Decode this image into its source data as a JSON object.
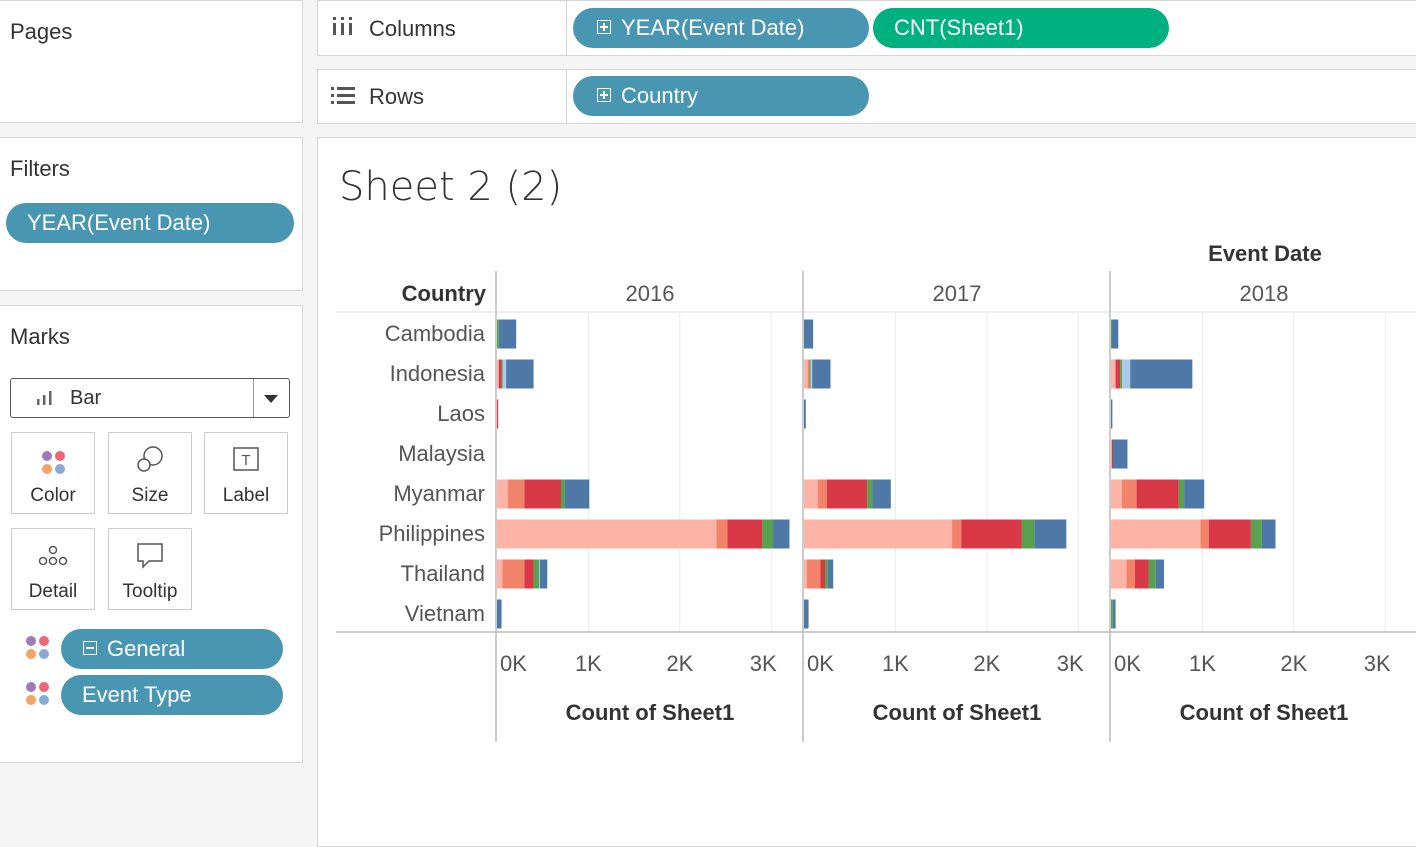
{
  "pages": {
    "title": "Pages"
  },
  "filters": {
    "title": "Filters",
    "pill": "YEAR(Event Date)"
  },
  "marks": {
    "title": "Marks",
    "mark_type": "Bar",
    "cards": {
      "color": "Color",
      "size": "Size",
      "label": "Label",
      "detail": "Detail",
      "tooltip": "Tooltip"
    },
    "fields": {
      "general": "General",
      "event_type": "Event Type"
    }
  },
  "columns_shelf": {
    "label": "Columns",
    "pills": [
      "YEAR(Event Date)",
      "CNT(Sheet1)"
    ]
  },
  "rows_shelf": {
    "label": "Rows",
    "pills": [
      "Country"
    ]
  },
  "sheet": {
    "title": "Sheet 2 (2)"
  },
  "colors": {
    "seg": [
      "#fdb3a5",
      "#f2836b",
      "#d93846",
      "#59a14f",
      "#a7cbe8",
      "#4e79a7"
    ],
    "pill_blue": "#4996b2",
    "pill_green": "#00b180"
  },
  "chart_data": {
    "type": "bar",
    "orientation": "horizontal",
    "stacked": true,
    "column_header": "Event Date",
    "row_header": "Country",
    "categories": [
      "Cambodia",
      "Indonesia",
      "Laos",
      "Malaysia",
      "Myanmar",
      "Philippines",
      "Thailand",
      "Vietnam"
    ],
    "panels": [
      {
        "year": "2016",
        "xlabel": "Count of Sheet1",
        "stacks": [
          [
            0,
            0,
            0,
            20,
            0,
            190
          ],
          [
            20,
            0,
            30,
            10,
            40,
            300
          ],
          [
            0,
            0,
            10,
            0,
            0,
            0
          ],
          [
            0,
            0,
            0,
            0,
            0,
            0
          ],
          [
            120,
            180,
            400,
            40,
            0,
            270
          ],
          [
            2400,
            120,
            380,
            120,
            0,
            180
          ],
          [
            60,
            240,
            100,
            60,
            10,
            80
          ],
          [
            0,
            0,
            0,
            0,
            0,
            50
          ]
        ]
      },
      {
        "year": "2017",
        "xlabel": "Count of Sheet1",
        "stacks": [
          [
            0,
            0,
            0,
            0,
            0,
            100
          ],
          [
            40,
            20,
            0,
            10,
            20,
            200
          ],
          [
            0,
            0,
            0,
            0,
            0,
            20
          ],
          [
            0,
            0,
            0,
            0,
            0,
            0
          ],
          [
            150,
            100,
            440,
            60,
            0,
            200
          ],
          [
            1620,
            100,
            660,
            140,
            0,
            350
          ],
          [
            30,
            150,
            50,
            30,
            0,
            60
          ],
          [
            0,
            0,
            0,
            0,
            0,
            50
          ]
        ]
      },
      {
        "year": "2018",
        "xlabel": "Count of Sheet1",
        "stacks": [
          [
            0,
            0,
            0,
            10,
            0,
            70
          ],
          [
            50,
            0,
            50,
            20,
            90,
            680
          ],
          [
            0,
            0,
            0,
            0,
            0,
            15
          ],
          [
            10,
            0,
            10,
            0,
            0,
            160
          ],
          [
            120,
            160,
            460,
            60,
            0,
            220
          ],
          [
            980,
            90,
            460,
            120,
            0,
            150
          ],
          [
            170,
            90,
            150,
            80,
            0,
            90
          ],
          [
            0,
            0,
            0,
            20,
            0,
            30
          ]
        ]
      }
    ],
    "xlim": [
      0,
      3000
    ],
    "xticks": [
      0,
      1000,
      2000,
      3000
    ],
    "xtick_labels": [
      "0K",
      "1K",
      "2K",
      "3K"
    ],
    "grid": true
  }
}
